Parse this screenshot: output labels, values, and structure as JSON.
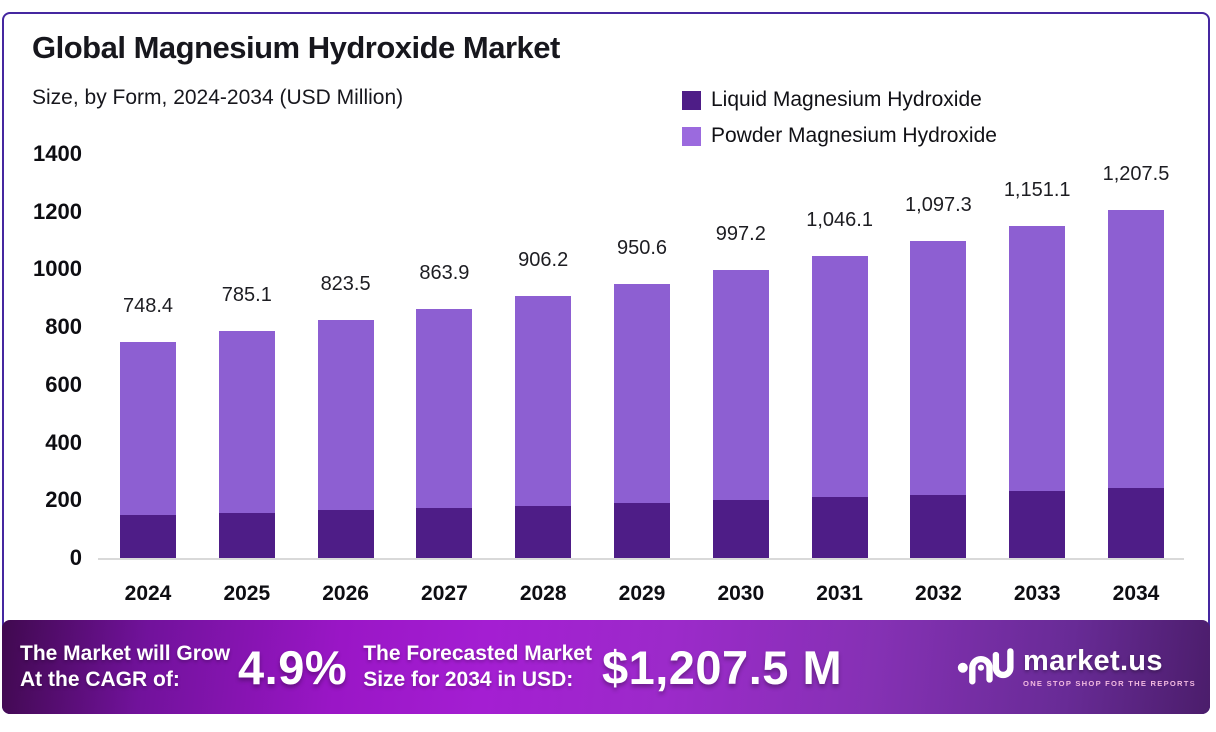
{
  "header": {
    "title": "Global Magnesium Hydroxide Market",
    "subtitle": "Size, by Form, 2024-2034 (USD Million)"
  },
  "legend": [
    {
      "label": "Liquid Magnesium Hydroxide",
      "color": "#4e1d87"
    },
    {
      "label": "Powder Magnesium Hydroxide",
      "color": "#9b6ade"
    }
  ],
  "chart_data": {
    "type": "bar",
    "stacked": true,
    "title": "Global Magnesium Hydroxide Market",
    "subtitle": "Size, by Form, 2024-2034 (USD Million)",
    "categories": [
      "2024",
      "2025",
      "2026",
      "2027",
      "2028",
      "2029",
      "2030",
      "2031",
      "2032",
      "2033",
      "2034"
    ],
    "series": [
      {
        "name": "Liquid Magnesium Hydroxide",
        "color": "#4e1d87",
        "values": [
          150.0,
          157.4,
          165.1,
          173.2,
          181.6,
          190.5,
          199.9,
          209.7,
          220.0,
          230.7,
          242.0
        ]
      },
      {
        "name": "Powder Magnesium Hydroxide",
        "color": "#8d5fd2",
        "values": [
          598.4,
          627.7,
          658.4,
          690.7,
          724.6,
          760.1,
          797.3,
          836.4,
          877.3,
          920.4,
          965.5
        ]
      }
    ],
    "totals": [
      748.4,
      785.1,
      823.5,
      863.9,
      906.2,
      950.6,
      997.2,
      1046.1,
      1097.3,
      1151.1,
      1207.5
    ],
    "total_labels": [
      "748.4",
      "785.1",
      "823.5",
      "863.9",
      "906.2",
      "950.6",
      "997.2",
      "1,046.1",
      "1,097.3",
      "1,151.1",
      "1,207.5"
    ],
    "ylim": [
      0,
      1400
    ],
    "yticks": [
      0,
      200,
      400,
      600,
      800,
      1000,
      1200,
      1400
    ],
    "ytick_labels": [
      "0",
      "200",
      "400",
      "600",
      "800",
      "1000",
      "1200",
      "1400"
    ],
    "grid": false,
    "legend_position": "top-right"
  },
  "banner": {
    "cagr_label_line1": "The Market will Grow",
    "cagr_label_line2": "At the CAGR of:",
    "cagr_value": "4.9%",
    "forecast_label_line1": "The Forecasted Market",
    "forecast_label_line2": "Size for 2034 in USD:",
    "forecast_value": "$1,207.5 M",
    "brand": "market.us",
    "brand_tagline": "ONE STOP SHOP FOR THE REPORTS"
  },
  "colors": {
    "card_border": "#4527a0",
    "liquid_bar": "#4e1d87",
    "powder_bar": "#8d5fd2",
    "banner_gradient_start": "#40094f",
    "banner_gradient_mid": "#a41ed2",
    "banner_gradient_end": "#4b1d6b",
    "axis_line": "#d9d9d9"
  }
}
